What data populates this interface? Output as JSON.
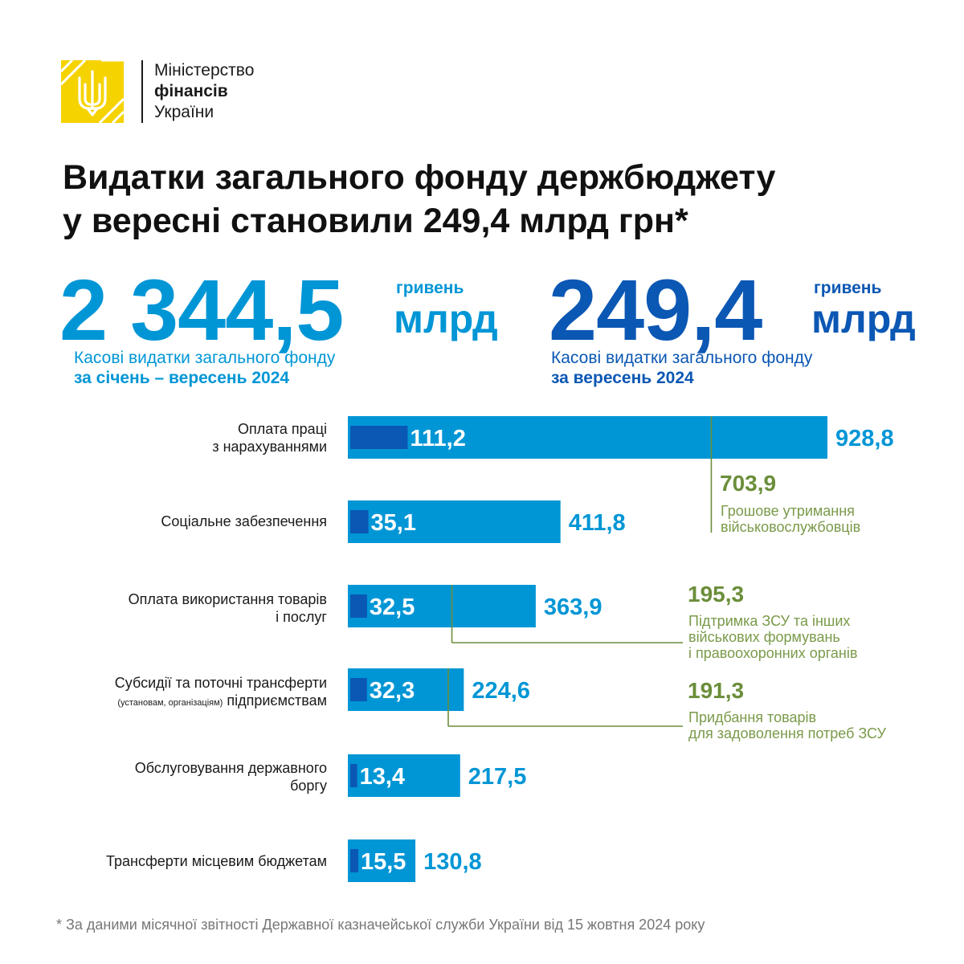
{
  "logo": {
    "line1": "Міністерство",
    "line2": "фінансів",
    "line3": "України"
  },
  "headline": {
    "line1": "Видатки загального фонду держбюджету",
    "line2": "у вересні становили 249,4 млрд грн*"
  },
  "summary_left": {
    "value": "2 344,5",
    "unit_small": "гривень",
    "unit_large": "млрд",
    "caption_line1": "Касові видатки загального фонду",
    "caption_line2": "за січень – вересень 2024",
    "color": "#0096d6"
  },
  "summary_right": {
    "value": "249,4",
    "unit_small": "гривень",
    "unit_large": "млрд",
    "caption_line1": "Касові видатки загального фонду",
    "caption_line2": "за вересень 2024",
    "color": "#0b57b4"
  },
  "colors": {
    "ytd_bar": "#0096d6",
    "month_bar": "#0b57b4",
    "annotation": "#6b8e3a",
    "logo_yellow": "#f5d300"
  },
  "categories": [
    {
      "line1": "Оплата праці",
      "line2": "з нарахуваннями",
      "note": ""
    },
    {
      "line1": "Соціальне забезпечення",
      "line2": "",
      "note": ""
    },
    {
      "line1": "Оплата використання товарів",
      "line2": "і послуг",
      "note": ""
    },
    {
      "line1": "Субсидії та поточні трансферти",
      "line2": "підприємствам",
      "note": "(установам, організаціям)"
    },
    {
      "line1": "Обслуговування державного",
      "line2": "боргу",
      "note": ""
    },
    {
      "line1": "Трансферти місцевим бюджетам",
      "line2": "",
      "note": ""
    }
  ],
  "chart_data": {
    "type": "bar",
    "orientation": "horizontal",
    "categories": [
      "Оплата праці з нарахуваннями",
      "Соціальне забезпечення",
      "Оплата використання товарів і послуг",
      "Субсидії та поточні трансферти підприємствам (установам, організаціям)",
      "Обслуговування державного боргу",
      "Трансферти місцевим бюджетам"
    ],
    "series": [
      {
        "values": [
          928.8,
          411.8,
          363.9,
          224.6,
          217.5,
          130.8
        ],
        "labels": [
          "928,8",
          "411,8",
          "363,9",
          "224,6",
          "217,5",
          "130,8"
        ]
      },
      {
        "values": [
          111.2,
          35.1,
          32.5,
          32.3,
          13.4,
          15.5
        ],
        "labels": [
          "111,2",
          "35,1",
          "32,5",
          "32,3",
          "13,4",
          "15,5"
        ]
      }
    ],
    "annotations": [
      {
        "category_index": 0,
        "value": 703.9,
        "label": "703,9",
        "text_line1": "Грошове утримання",
        "text_line2": "військовослужбовців",
        "text_line3": ""
      },
      {
        "category_index": 2,
        "value": 195.3,
        "label": "195,3",
        "text_line1": "Підтримка ЗСУ та інших",
        "text_line2": "військових формувань",
        "text_line3": "і правоохоронних органів"
      },
      {
        "category_index": 3,
        "value": 191.3,
        "label": "191,3",
        "text_line1": "Придбання товарів",
        "text_line2": "для задоволення потреб ЗСУ",
        "text_line3": ""
      }
    ],
    "xlim": [
      0,
      928.8
    ],
    "grid": false,
    "legend": "none"
  },
  "footnote": "* За даними місячної звітності Державної казначейської служби України від 15 жовтня 2024 року"
}
